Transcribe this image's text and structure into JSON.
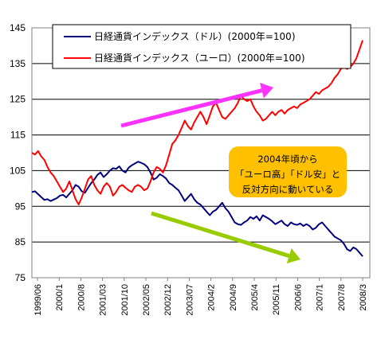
{
  "chart_data": {
    "type": "line",
    "title": "",
    "xlabel": "",
    "ylabel": "",
    "ylim": [
      75,
      145
    ],
    "yticks": [
      75,
      85,
      95,
      105,
      115,
      125,
      135,
      145
    ],
    "xtick_labels": [
      "1999/06",
      "2000/1",
      "2000/8",
      "2001/03",
      "2001/10",
      "2002/05",
      "2002/12",
      "2003/07",
      "2004/2",
      "2004/9",
      "2005/4",
      "2005/11",
      "2006/6",
      "2007/1",
      "2007/8",
      "2008/3"
    ],
    "grid": "horizontal",
    "legend_position": "top",
    "series": [
      {
        "name": "日経通貨インデックス（ドル）(2000年=100)",
        "color": "#00007f",
        "values": [
          99.0,
          99.2,
          98.4,
          97.6,
          96.8,
          97.0,
          96.5,
          96.9,
          97.3,
          98.0,
          98.2,
          97.5,
          98.5,
          99.5,
          101.0,
          100.5,
          99.2,
          98.8,
          100.2,
          101.5,
          102.5,
          103.8,
          104.5,
          103.2,
          104.0,
          105.0,
          105.7,
          105.5,
          106.2,
          105.0,
          104.5,
          105.8,
          106.5,
          107.0,
          107.5,
          107.2,
          106.8,
          106.0,
          104.5,
          102.5,
          103.0,
          104.0,
          103.5,
          102.8,
          101.5,
          101.0,
          100.2,
          99.5,
          98.0,
          96.5,
          97.5,
          98.5,
          97.0,
          96.0,
          95.5,
          94.5,
          93.5,
          92.5,
          93.5,
          94.0,
          95.0,
          96.0,
          94.5,
          93.5,
          92.0,
          90.5,
          90.0,
          89.8,
          90.5,
          91.0,
          92.0,
          91.5,
          92.2,
          91.0,
          92.5,
          92.0,
          91.5,
          90.8,
          90.0,
          90.5,
          91.0,
          90.0,
          89.5,
          90.5,
          90.0,
          89.8,
          90.2,
          89.5,
          90.0,
          89.5,
          88.5,
          89.0,
          90.0,
          90.5,
          89.5,
          88.5,
          87.5,
          86.5,
          86.0,
          85.5,
          84.5,
          83.0,
          82.5,
          83.5,
          83.0,
          82.0,
          81.0
        ]
      },
      {
        "name": "日経通貨インデックス（ユーロ）(2000年=100)",
        "color": "#ff0000",
        "values": [
          110.0,
          109.5,
          110.5,
          109.0,
          108.0,
          106.0,
          104.5,
          103.5,
          102.0,
          100.5,
          99.0,
          100.0,
          102.0,
          99.5,
          97.0,
          95.5,
          97.5,
          100.0,
          102.5,
          103.5,
          101.0,
          99.5,
          98.5,
          100.5,
          101.5,
          100.5,
          98.0,
          99.0,
          100.5,
          101.0,
          100.2,
          99.5,
          99.0,
          100.5,
          101.0,
          100.5,
          99.5,
          100.0,
          102.0,
          104.5,
          106.0,
          105.5,
          104.5,
          106.5,
          109.5,
          112.5,
          113.5,
          115.0,
          117.0,
          119.0,
          117.5,
          116.5,
          118.5,
          120.0,
          121.5,
          120.0,
          118.0,
          120.5,
          123.0,
          124.0,
          122.0,
          120.0,
          119.5,
          120.5,
          121.5,
          122.5,
          124.0,
          126.0,
          125.0,
          124.5,
          125.0,
          123.0,
          121.5,
          120.5,
          119.0,
          119.5,
          120.5,
          121.5,
          120.5,
          121.5,
          122.0,
          121.0,
          122.0,
          122.5,
          123.0,
          122.5,
          123.5,
          124.0,
          124.5,
          125.0,
          126.0,
          127.0,
          126.5,
          127.5,
          128.0,
          128.5,
          129.5,
          131.0,
          132.0,
          133.5,
          134.0,
          133.5,
          134.0,
          135.0,
          136.5,
          139.0,
          141.5
        ]
      }
    ],
    "annotations": [
      {
        "lines": [
          "2004年頃から",
          "「ユーロ高」「ドル安」と",
          "反対方向に動いている"
        ],
        "box_color": "#ffc000"
      }
    ],
    "arrows": [
      {
        "color": "#ff33ff",
        "direction": "up"
      },
      {
        "color": "#99cc00",
        "direction": "down"
      }
    ],
    "plot_background": "#ffffff",
    "grid_color": "#000000"
  }
}
